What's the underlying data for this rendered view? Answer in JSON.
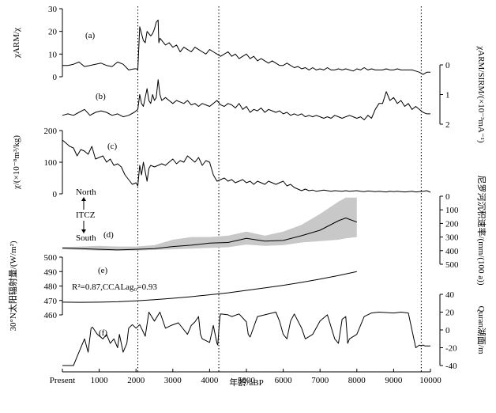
{
  "chart_data": {
    "type": "line",
    "x_axis": {
      "label": "年龄/aBP",
      "ticks": [
        {
          "v": 0,
          "t": "Present"
        },
        {
          "v": 1000,
          "t": "1000"
        },
        {
          "v": 2000,
          "t": "2000"
        },
        {
          "v": 3000,
          "t": "3000"
        },
        {
          "v": 4000,
          "t": "4000"
        },
        {
          "v": 5000,
          "t": "5000"
        },
        {
          "v": 6000,
          "t": "6000"
        },
        {
          "v": 7000,
          "t": "7000"
        },
        {
          "v": 8000,
          "t": "8000"
        },
        {
          "v": 9000,
          "t": "9000"
        },
        {
          "v": 10000,
          "t": "10000"
        }
      ],
      "xlim": [
        0,
        10000
      ]
    },
    "vertical_lines": [
      2050,
      4250,
      9750
    ],
    "panels": [
      {
        "id": "a",
        "tag": "(a)",
        "side": "left",
        "ylabel": "χARM/χ",
        "ylim": [
          0,
          30
        ],
        "reversed": false,
        "ticks": [
          {
            "v": 0,
            "t": "0"
          },
          {
            "v": 10,
            "t": "10"
          },
          {
            "v": 20,
            "t": "20"
          },
          {
            "v": 30,
            "t": "30"
          }
        ],
        "x": [
          0,
          150,
          300,
          450,
          600,
          750,
          900,
          1050,
          1200,
          1350,
          1500,
          1650,
          1800,
          1950,
          2020,
          2050,
          2100,
          2150,
          2200,
          2250,
          2300,
          2350,
          2400,
          2450,
          2500,
          2550,
          2600,
          2620,
          2650,
          2700,
          2800,
          2900,
          3000,
          3100,
          3200,
          3300,
          3400,
          3500,
          3600,
          3700,
          3800,
          3900,
          4000,
          4100,
          4200,
          4300,
          4400,
          4500,
          4600,
          4700,
          4800,
          4900,
          5000,
          5100,
          5200,
          5300,
          5400,
          5500,
          5600,
          5700,
          5800,
          5900,
          6000,
          6100,
          6200,
          6300,
          6400,
          6500,
          6600,
          6700,
          6800,
          6900,
          7000,
          7100,
          7200,
          7300,
          7400,
          7500,
          7600,
          7700,
          7800,
          7900,
          8000,
          8100,
          8200,
          8300,
          8400,
          8500,
          8600,
          8700,
          8800,
          8900,
          9000,
          9100,
          9200,
          9300,
          9400,
          9500,
          9600,
          9700,
          9800,
          9900,
          10000
        ],
        "y": [
          5,
          5,
          5.5,
          6.5,
          4.5,
          5,
          5.5,
          6,
          5,
          4.5,
          6.5,
          5.5,
          3,
          3.5,
          3.5,
          3,
          22,
          19,
          16,
          15,
          20,
          19,
          18,
          19,
          21,
          24,
          25,
          15,
          17,
          16,
          14,
          15,
          13,
          14,
          11,
          13,
          12,
          11,
          13,
          12,
          11,
          10,
          12,
          11,
          10,
          9,
          10,
          11,
          9,
          10,
          8,
          9,
          10,
          8,
          9,
          7,
          8,
          7,
          6,
          7,
          6,
          5,
          5,
          6,
          5,
          4,
          4.5,
          3.5,
          4,
          3,
          4,
          3,
          3.5,
          3,
          4,
          3,
          3,
          3.5,
          3,
          3.5,
          3,
          2.5,
          3.5,
          3,
          4,
          3,
          3.5,
          3,
          3,
          3,
          3.5,
          3,
          3,
          3.5,
          3,
          3,
          3,
          3,
          2.5,
          2,
          1,
          2,
          2
        ]
      },
      {
        "id": "b",
        "tag": "(b)",
        "side": "right",
        "ylabel": "χARM/SIRM/(×10⁻³mA⁻¹)",
        "ylim": [
          0,
          2
        ],
        "reversed": true,
        "ticks": [
          {
            "v": 0,
            "t": "0"
          },
          {
            "v": 1,
            "t": "1"
          },
          {
            "v": 2,
            "t": "2"
          }
        ],
        "x": [
          0,
          150,
          300,
          450,
          600,
          750,
          900,
          1050,
          1200,
          1350,
          1500,
          1650,
          1800,
          1950,
          2050,
          2100,
          2150,
          2200,
          2300,
          2350,
          2400,
          2450,
          2500,
          2550,
          2600,
          2650,
          2700,
          2800,
          2900,
          3000,
          3100,
          3200,
          3300,
          3400,
          3500,
          3600,
          3700,
          3800,
          3900,
          4000,
          4100,
          4200,
          4300,
          4400,
          4500,
          4600,
          4700,
          4800,
          4900,
          5000,
          5100,
          5200,
          5300,
          5400,
          5500,
          5600,
          5700,
          5800,
          5900,
          6000,
          6100,
          6200,
          6300,
          6400,
          6500,
          6600,
          6700,
          6800,
          6900,
          7000,
          7100,
          7200,
          7300,
          7400,
          7500,
          7600,
          7700,
          7800,
          7900,
          8000,
          8100,
          8200,
          8300,
          8400,
          8500,
          8600,
          8700,
          8800,
          8900,
          9000,
          9100,
          9200,
          9300,
          9400,
          9500,
          9600,
          9700,
          9800,
          9900,
          10000
        ],
        "y": [
          1.7,
          1.65,
          1.7,
          1.6,
          1.5,
          1.7,
          1.6,
          1.55,
          1.6,
          1.7,
          1.65,
          1.75,
          1.7,
          1.6,
          1.5,
          1.0,
          1.3,
          1.4,
          0.8,
          1.2,
          1.3,
          1.0,
          1.2,
          1.1,
          0.5,
          1.0,
          1.2,
          1.1,
          1.2,
          1.3,
          1.2,
          1.25,
          1.3,
          1.2,
          1.35,
          1.3,
          1.4,
          1.3,
          1.35,
          1.4,
          1.3,
          1.2,
          1.35,
          1.4,
          1.3,
          1.35,
          1.45,
          1.3,
          1.5,
          1.4,
          1.6,
          1.5,
          1.55,
          1.45,
          1.6,
          1.5,
          1.55,
          1.6,
          1.55,
          1.65,
          1.6,
          1.7,
          1.65,
          1.7,
          1.65,
          1.75,
          1.7,
          1.75,
          1.7,
          1.75,
          1.8,
          1.75,
          1.8,
          1.7,
          1.75,
          1.8,
          1.75,
          1.7,
          1.75,
          1.8,
          1.75,
          1.85,
          1.7,
          1.8,
          1.5,
          1.3,
          1.3,
          0.9,
          1.2,
          1.1,
          1.3,
          1.2,
          1.4,
          1.3,
          1.5,
          1.4,
          1.5,
          1.6,
          1.65,
          1.65
        ]
      },
      {
        "id": "c",
        "tag": "(c)",
        "side": "left",
        "ylabel": "χ/(×10⁻⁸m³/kg)",
        "ylim": [
          0,
          200
        ],
        "reversed": false,
        "ticks": [
          {
            "v": 0,
            "t": "0"
          },
          {
            "v": 100,
            "t": "100"
          },
          {
            "v": 200,
            "t": "200"
          }
        ],
        "x": [
          0,
          100,
          200,
          300,
          400,
          500,
          600,
          700,
          800,
          900,
          1000,
          1100,
          1200,
          1300,
          1400,
          1500,
          1600,
          1700,
          1800,
          1900,
          2000,
          2050,
          2100,
          2150,
          2200,
          2250,
          2300,
          2350,
          2400,
          2500,
          2600,
          2700,
          2800,
          2900,
          3000,
          3100,
          3200,
          3300,
          3400,
          3500,
          3600,
          3700,
          3800,
          3900,
          4000,
          4100,
          4200,
          4300,
          4400,
          4500,
          4600,
          4700,
          4800,
          4900,
          5000,
          5100,
          5200,
          5300,
          5400,
          5500,
          5600,
          5700,
          5800,
          5900,
          6000,
          6100,
          6200,
          6300,
          6400,
          6500,
          6600,
          6700,
          6800,
          6900,
          7000,
          7100,
          7200,
          7300,
          7400,
          7500,
          7600,
          7700,
          7800,
          7900,
          8000,
          8100,
          8200,
          8300,
          8400,
          8500,
          8600,
          8700,
          8800,
          8900,
          9000,
          9100,
          9200,
          9300,
          9400,
          9500,
          9600,
          9700,
          9800,
          9900,
          10000
        ],
        "y": [
          170,
          160,
          150,
          145,
          120,
          140,
          135,
          125,
          150,
          110,
          115,
          120,
          100,
          110,
          90,
          95,
          85,
          60,
          45,
          30,
          35,
          25,
          90,
          60,
          100,
          70,
          40,
          80,
          90,
          85,
          90,
          95,
          90,
          100,
          110,
          95,
          105,
          100,
          120,
          110,
          100,
          115,
          90,
          105,
          100,
          60,
          40,
          45,
          50,
          40,
          45,
          35,
          40,
          45,
          35,
          40,
          30,
          40,
          35,
          30,
          40,
          35,
          30,
          35,
          40,
          25,
          30,
          20,
          15,
          10,
          15,
          10,
          12,
          8,
          10,
          12,
          10,
          8,
          10,
          9,
          8,
          10,
          8,
          9,
          10,
          8,
          7,
          9,
          8,
          7,
          8,
          7,
          6,
          8,
          7,
          8,
          7,
          6,
          7,
          8,
          6,
          7,
          8,
          10,
          5
        ]
      },
      {
        "id": "d",
        "tag": "(d)",
        "side": "right",
        "ylabel": "尼罗河沉积速率/(mm/(100 a))",
        "ylim": [
          0,
          500
        ],
        "reversed": true,
        "ticks": [
          {
            "v": 0,
            "t": "0"
          },
          {
            "v": 100,
            "t": "100"
          },
          {
            "v": 200,
            "t": "200"
          },
          {
            "v": 300,
            "t": "300"
          },
          {
            "v": 400,
            "t": "400"
          },
          {
            "v": 500,
            "t": "500"
          }
        ],
        "x": [
          0,
          500,
          1000,
          1500,
          2000,
          2500,
          3000,
          3500,
          4000,
          4500,
          5000,
          5500,
          6000,
          6500,
          7000,
          7500,
          7700,
          8000
        ],
        "y": [
          380,
          385,
          390,
          395,
          390,
          385,
          370,
          360,
          345,
          340,
          310,
          330,
          325,
          290,
          250,
          180,
          160,
          190
        ],
        "band_x": [
          0,
          500,
          1000,
          1500,
          2000,
          2500,
          3000,
          3500,
          4000,
          4500,
          5000,
          5500,
          6000,
          6500,
          7000,
          7500,
          7700,
          8000
        ],
        "band_upper": [
          375,
          370,
          365,
          370,
          370,
          360,
          320,
          300,
          300,
          290,
          260,
          290,
          260,
          210,
          130,
          40,
          10,
          10
        ],
        "band_lower": [
          390,
          395,
          400,
          400,
          400,
          395,
          390,
          385,
          380,
          375,
          355,
          365,
          360,
          340,
          330,
          320,
          310,
          300
        ],
        "north_label": "North",
        "itcz_label": "ITCZ",
        "south_label": "South"
      },
      {
        "id": "e",
        "tag": "(e)",
        "side": "left",
        "ylabel": "30°N太阳辐射量/(W/m²)",
        "ylim": [
          460,
          500
        ],
        "reversed": false,
        "ticks": [
          {
            "v": 460,
            "t": "460"
          },
          {
            "v": 470,
            "t": "470"
          },
          {
            "v": 480,
            "t": "480"
          },
          {
            "v": 490,
            "t": "490"
          },
          {
            "v": 500,
            "t": "500"
          }
        ],
        "x": [
          0,
          500,
          1000,
          1500,
          2000,
          2500,
          3000,
          3500,
          4000,
          4500,
          5000,
          5500,
          6000,
          6500,
          7000,
          7500,
          8000
        ],
        "y": [
          468.8,
          468.7,
          468.8,
          469.1,
          469.7,
          470.5,
          471.5,
          472.6,
          473.9,
          475.3,
          477.0,
          478.7,
          480.5,
          482.5,
          484.8,
          487.3,
          490.0
        ],
        "annotation": "R²=0.87,CCALag₀=0.93"
      },
      {
        "id": "f",
        "tag": "(f)",
        "side": "right",
        "ylabel": "Quran湖面/m",
        "ylim": [
          -40,
          40
        ],
        "reversed": false,
        "ticks": [
          {
            "v": 40,
            "t": "40"
          },
          {
            "v": 20,
            "t": "20"
          },
          {
            "v": 0,
            "t": "0"
          },
          {
            "v": -20,
            "t": "-20"
          },
          {
            "v": -40,
            "t": "-40"
          }
        ],
        "x": [
          0,
          300,
          400,
          600,
          700,
          780,
          820,
          950,
          1100,
          1200,
          1300,
          1400,
          1500,
          1550,
          1650,
          1750,
          1800,
          1900,
          2000,
          2100,
          2250,
          2350,
          2500,
          2650,
          2800,
          2950,
          3150,
          3400,
          3500,
          3600,
          3700,
          3750,
          3800,
          4000,
          4100,
          4200,
          4220,
          4280,
          4300,
          4500,
          4600,
          4800,
          5000,
          5050,
          5100,
          5300,
          5800,
          5900,
          6000,
          6100,
          6200,
          6300,
          6500,
          6600,
          6800,
          7000,
          7200,
          7400,
          7500,
          7600,
          7700,
          7750,
          7800,
          8000,
          8200,
          8400,
          8600,
          9000,
          9200,
          9400,
          9600,
          9700,
          9750,
          9800,
          9850,
          10000
        ],
        "y": [
          -40,
          -40,
          -30,
          -10,
          -25,
          2,
          3,
          -5,
          -10,
          -5,
          -15,
          -10,
          -20,
          -5,
          -25,
          -15,
          2,
          6,
          2,
          6,
          -7,
          20,
          10,
          20,
          2,
          5,
          8,
          -5,
          5,
          9,
          15,
          -5,
          -10,
          -14,
          5,
          -15,
          -17,
          15,
          18,
          17,
          15,
          18,
          9,
          -5,
          -8,
          15,
          20,
          10,
          -5,
          -10,
          10,
          18,
          2,
          -10,
          -5,
          10,
          17,
          -10,
          -15,
          12,
          15,
          -15,
          -10,
          -5,
          15,
          19,
          20,
          19,
          20,
          19,
          -20,
          -17,
          -18,
          -17,
          -18,
          -18
        ]
      }
    ]
  }
}
